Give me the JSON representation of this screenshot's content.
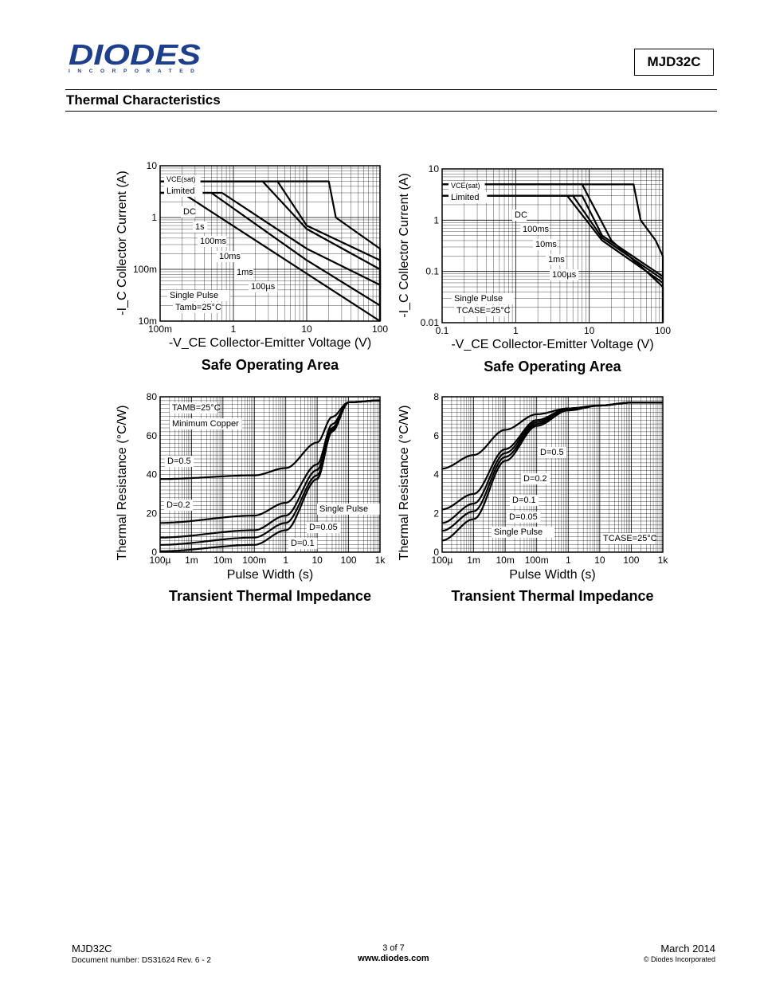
{
  "header": {
    "logo_text": "DIODES",
    "logo_sub": "INCORPORATED",
    "part_number": "MJD32C",
    "section_title": "Thermal Characteristics"
  },
  "footer": {
    "part": "MJD32C",
    "doc_number": "Document number: DS31624 Rev. 6 - 2",
    "page": "3 of 7",
    "url": "www.diodes.com",
    "date": "March 2014",
    "copyright": "© Diodes Incorporated"
  },
  "colors": {
    "logo_blue": "#1d3f8f",
    "ink": "#000000",
    "grid": "#000000"
  },
  "chart_data": [
    {
      "type": "line",
      "title": "Safe Operating Area",
      "xlabel": "-V_CE  Collector-Emitter Voltage (V)",
      "ylabel": "-I_C  Collector Current (A)",
      "xscale": "log",
      "yscale": "log",
      "xlim": [
        0.1,
        100
      ],
      "ylim": [
        0.01,
        10
      ],
      "xticks": [
        "100m",
        "1",
        "10",
        "100"
      ],
      "yticks": [
        "10m",
        "100m",
        "1",
        "10"
      ],
      "annotations": [
        "VCE(sat) Limited",
        "DC",
        "1s",
        "100ms",
        "10ms",
        "1ms",
        "100µs",
        "Single Pulse",
        "Tamb=25°C"
      ],
      "series": [
        {
          "name": "DC",
          "x": [
            0.1,
            0.2,
            100
          ],
          "y": [
            3,
            3,
            0.01
          ]
        },
        {
          "name": "1s",
          "x": [
            0.1,
            0.5,
            10,
            100
          ],
          "y": [
            3,
            3,
            0.15,
            0.02
          ]
        },
        {
          "name": "100ms",
          "x": [
            0.1,
            0.7,
            10,
            100
          ],
          "y": [
            3,
            3,
            0.25,
            0.05
          ]
        },
        {
          "name": "10ms",
          "x": [
            0.1,
            2.5,
            10,
            100,
            100
          ],
          "y": [
            5,
            5,
            0.6,
            0.1,
            0.01
          ]
        },
        {
          "name": "1ms",
          "x": [
            0.1,
            4,
            10,
            100,
            100
          ],
          "y": [
            5,
            5,
            0.7,
            0.15,
            0.01
          ]
        },
        {
          "name": "100µs",
          "x": [
            0.1,
            20,
            25,
            50,
            100,
            100
          ],
          "y": [
            5,
            5,
            1,
            0.5,
            0.25,
            0.01
          ]
        }
      ]
    },
    {
      "type": "line",
      "title": "Safe Operating Area",
      "xlabel": "-V_CE  Collector-Emitter Voltage (V)",
      "ylabel": "-I_C  Collector Current (A)",
      "xscale": "log",
      "yscale": "log",
      "xlim": [
        0.1,
        100
      ],
      "ylim": [
        0.01,
        10
      ],
      "xticks": [
        "0.1",
        "1",
        "10",
        "100"
      ],
      "yticks": [
        "0.01",
        "0.1",
        "1",
        "10"
      ],
      "annotations": [
        "VCE(sat) Limited",
        "DC",
        "100ms",
        "10ms",
        "1ms",
        "100µs",
        "Single Pulse",
        "TCASE=25°C"
      ],
      "series": [
        {
          "name": "DC",
          "x": [
            0.1,
            5,
            15,
            100
          ],
          "y": [
            3,
            3,
            0.4,
            0.06
          ]
        },
        {
          "name": "100ms",
          "x": [
            0.1,
            6,
            15,
            100
          ],
          "y": [
            3,
            3,
            0.45,
            0.07
          ]
        },
        {
          "name": "10ms",
          "x": [
            0.1,
            8,
            15,
            100
          ],
          "y": [
            3,
            3,
            0.5,
            0.08
          ]
        },
        {
          "name": "1ms",
          "x": [
            0.1,
            8,
            20,
            60,
            100,
            100
          ],
          "y": [
            5,
            5,
            0.4,
            0.1,
            0.05,
            0.01
          ]
        },
        {
          "name": "100µs",
          "x": [
            0.1,
            40,
            50,
            80,
            100,
            100
          ],
          "y": [
            5,
            5,
            1,
            0.4,
            0.2,
            0.01
          ]
        }
      ]
    },
    {
      "type": "line",
      "title": "Transient Thermal Impedance",
      "xlabel": "Pulse Width (s)",
      "ylabel": "Thermal Resistance (°C/W)",
      "xscale": "log",
      "xlim": [
        0.0001,
        1000
      ],
      "ylim": [
        0,
        85
      ],
      "xticks": [
        "100µ",
        "1m",
        "10m",
        "100m",
        "1",
        "10",
        "100",
        "1k"
      ],
      "yticks": [
        "0",
        "20",
        "40",
        "60",
        "80"
      ],
      "annotations": [
        "TAMB=25°C",
        "Minimum Copper",
        "D=0.5",
        "D=0.2",
        "Single Pulse",
        "D=0.05",
        "D=0.1"
      ],
      "series": [
        {
          "name": "D=0.5",
          "x": [
            0.0001,
            0.1,
            1,
            10,
            30,
            100,
            1000
          ],
          "y": [
            40,
            42,
            46,
            60,
            74,
            82,
            83
          ]
        },
        {
          "name": "D=0.2",
          "x": [
            0.0001,
            0.1,
            1,
            10,
            30,
            100,
            1000
          ],
          "y": [
            16,
            20,
            27,
            48,
            70,
            82,
            83
          ]
        },
        {
          "name": "D=0.1",
          "x": [
            0.0001,
            0.1,
            1,
            10,
            30,
            100,
            1000
          ],
          "y": [
            8,
            12,
            20,
            45,
            68,
            82,
            83
          ]
        },
        {
          "name": "D=0.05",
          "x": [
            0.0001,
            0.1,
            1,
            10,
            30,
            100,
            1000
          ],
          "y": [
            4,
            8,
            16,
            42,
            67,
            82,
            83
          ]
        },
        {
          "name": "Single Pulse",
          "x": [
            0.0001,
            0.1,
            1,
            10,
            30,
            100,
            1000
          ],
          "y": [
            0.5,
            4,
            12,
            40,
            66,
            82,
            83
          ]
        }
      ]
    },
    {
      "type": "line",
      "title": "Transient Thermal Impedance",
      "xlabel": "Pulse Width (s)",
      "ylabel": "Thermal Resistance (°C/W)",
      "xscale": "log",
      "xlim": [
        0.0001,
        1000
      ],
      "ylim": [
        0,
        8
      ],
      "xticks": [
        "100µ",
        "1m",
        "10m",
        "100m",
        "1",
        "10",
        "100",
        "1k"
      ],
      "yticks": [
        "0",
        "2",
        "4",
        "6",
        "8"
      ],
      "annotations": [
        "D=0.5",
        "D=0.2",
        "D=0.1",
        "D=0.05",
        "Single Pulse",
        "TCASE=25°C"
      ],
      "series": [
        {
          "name": "D=0.5",
          "x": [
            0.0001,
            0.001,
            0.01,
            0.1,
            1,
            10,
            100,
            1000
          ],
          "y": [
            4.3,
            5.0,
            6.3,
            7.1,
            7.4,
            7.55,
            7.7,
            7.7
          ]
        },
        {
          "name": "D=0.2",
          "x": [
            0.0001,
            0.001,
            0.01,
            0.1,
            1,
            10,
            100,
            1000
          ],
          "y": [
            2.2,
            3.0,
            5.3,
            6.8,
            7.4,
            7.55,
            7.7,
            7.7
          ]
        },
        {
          "name": "D=0.1",
          "x": [
            0.0001,
            0.001,
            0.01,
            0.1,
            1,
            10,
            100,
            1000
          ],
          "y": [
            1.5,
            2.5,
            5.1,
            6.7,
            7.35,
            7.55,
            7.7,
            7.7
          ]
        },
        {
          "name": "D=0.05",
          "x": [
            0.0001,
            0.001,
            0.01,
            0.1,
            1,
            10,
            100,
            1000
          ],
          "y": [
            1.1,
            2.1,
            4.9,
            6.6,
            7.3,
            7.55,
            7.7,
            7.7
          ]
        },
        {
          "name": "Single Pulse",
          "x": [
            0.0001,
            0.001,
            0.01,
            0.1,
            1,
            10,
            100,
            1000
          ],
          "y": [
            0.6,
            1.7,
            4.7,
            6.5,
            7.3,
            7.55,
            7.7,
            7.7
          ]
        }
      ]
    }
  ]
}
